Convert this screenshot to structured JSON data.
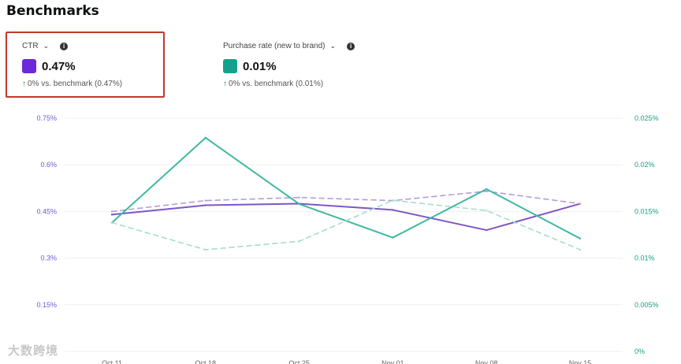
{
  "page": {
    "title": "Benchmarks"
  },
  "metrics": [
    {
      "label": "CTR",
      "value": "0.47%",
      "benchmark_text": "0% vs. benchmark (0.47%)",
      "color": "#6d28d9"
    },
    {
      "label": "Purchase rate (new to brand)",
      "value": "0.01%",
      "benchmark_text": "0% vs. benchmark (0.01%)",
      "color": "#14a08c"
    }
  ],
  "icons": {
    "dropdown": "chevron-down-icon",
    "info": "info-icon",
    "trend": "arrow-up-icon"
  },
  "watermark": "大数跨境",
  "chart_data": {
    "type": "line",
    "x": [
      "Oct 11",
      "Oct 18",
      "Oct 25",
      "Nov 01",
      "Nov 08",
      "Nov 15"
    ],
    "y_left": {
      "ticks": [
        "0.15%",
        "0.3%",
        "0.45%",
        "0.6%",
        "0.75%"
      ],
      "ylim": [
        0,
        0.75
      ],
      "color": "#6d5bd0"
    },
    "y_right": {
      "ticks": [
        "0%",
        "0.005%",
        "0.01%",
        "0.015%",
        "0.02%",
        "0.025%"
      ],
      "ylim": [
        0,
        0.025
      ],
      "color": "#14a08c"
    },
    "grid": true,
    "series": [
      {
        "axis": "left",
        "style": "solid",
        "color": "#7e57c2",
        "values": [
          0.44,
          0.47,
          0.475,
          0.455,
          0.39,
          0.475
        ]
      },
      {
        "axis": "left",
        "style": "dashed",
        "color": "#b39ddb",
        "values": [
          0.45,
          0.485,
          0.495,
          0.485,
          0.515,
          0.475
        ]
      },
      {
        "axis": "right",
        "style": "solid",
        "color": "#3fb8a0",
        "values": [
          0.0138,
          0.0229,
          0.0158,
          0.0122,
          0.0174,
          0.0121
        ]
      },
      {
        "axis": "right",
        "style": "dashed",
        "color": "#a8dccf",
        "values": [
          0.0138,
          0.0109,
          0.0118,
          0.0162,
          0.0151,
          0.0109
        ]
      }
    ]
  }
}
